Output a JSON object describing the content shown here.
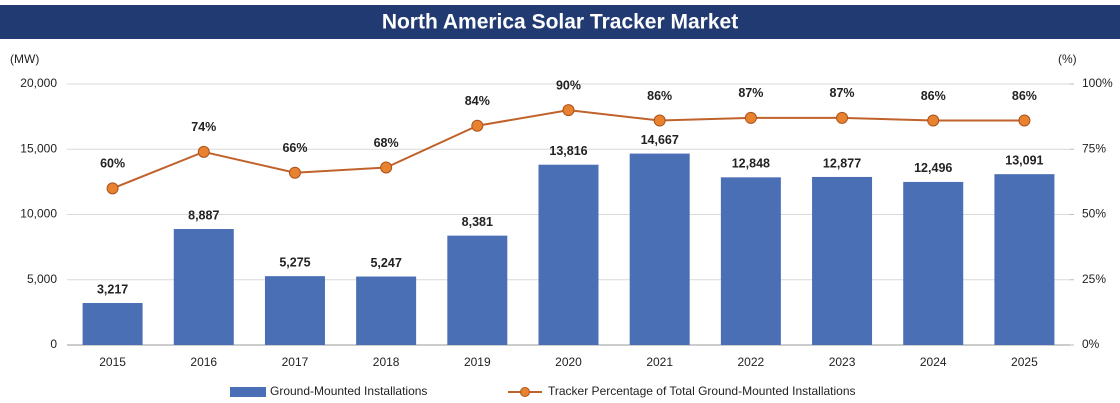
{
  "chart_data": {
    "type": "bar",
    "title": "North America Solar Tracker Market",
    "y_label": "(MW)",
    "y2_label": "(%)",
    "categories": [
      "2015",
      "2016",
      "2017",
      "2018",
      "2019",
      "2020",
      "2021",
      "2022",
      "2023",
      "2024",
      "2025"
    ],
    "series": [
      {
        "name": "Ground-Mounted Installations",
        "type": "bar",
        "color": "#4a6fb5",
        "values": [
          3217,
          8887,
          5275,
          5247,
          8381,
          13816,
          14667,
          12848,
          12877,
          12496,
          13091
        ],
        "value_labels": [
          "3,217",
          "8,887",
          "5,275",
          "5,247",
          "8,381",
          "13,816",
          "14,667",
          "12,848",
          "12,877",
          "12,496",
          "13,091"
        ]
      },
      {
        "name": "Tracker Percentage of Total Ground-Mounted Installations",
        "type": "line",
        "axis": "y2",
        "color": "#c0622b",
        "values": [
          60,
          74,
          66,
          68,
          84,
          90,
          86,
          87,
          87,
          86,
          86
        ],
        "value_labels": [
          "60%",
          "74%",
          "66%",
          "68%",
          "84%",
          "90%",
          "86%",
          "87%",
          "87%",
          "86%",
          "86%"
        ]
      }
    ],
    "ylim": [
      0,
      20000
    ],
    "yticks": [
      0,
      {
        "value": 5000,
        "label": "5,000"
      },
      {
        "value": 10000,
        "label": "10,000"
      },
      {
        "value": 15000,
        "label": "15,000"
      },
      {
        "value": 20000,
        "label": "20,000"
      }
    ],
    "y2lim": [
      0,
      100
    ],
    "y2ticks": [
      {
        "value": 0,
        "label": "0%"
      },
      {
        "value": 25,
        "label": "25%"
      },
      {
        "value": 50,
        "label": "50%"
      },
      {
        "value": 75,
        "label": "75%"
      },
      {
        "value": 100,
        "label": "100%"
      }
    ],
    "grid": true,
    "legend": "bottom"
  }
}
